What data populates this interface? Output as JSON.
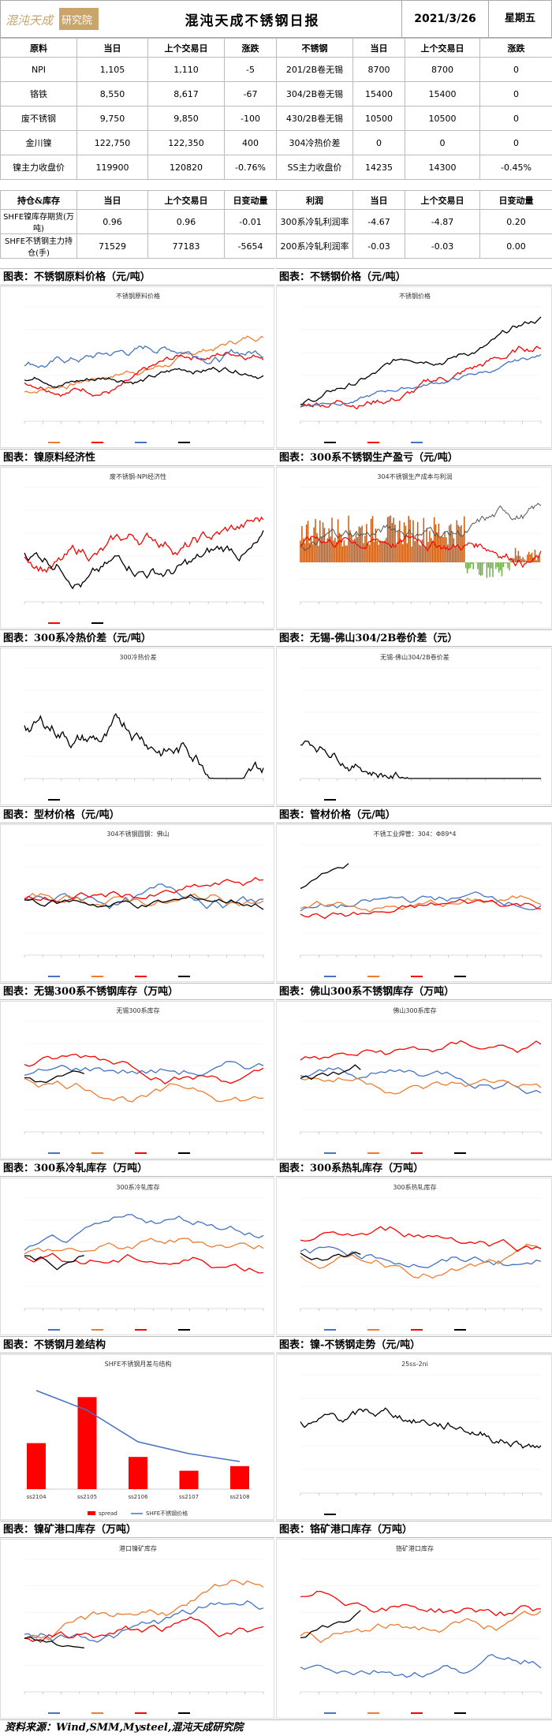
{
  "header": {
    "logo_text": "混沌天成研究院",
    "title": "混沌天成不锈钢日报",
    "date": "2021/3/26",
    "weekday": "星期五"
  },
  "table1": {
    "headers": [
      "原料",
      "当日",
      "上个交易日",
      "涨跌",
      "不锈钢",
      "当日",
      "上个交易日",
      "涨跌"
    ],
    "rows": [
      [
        "NPI",
        "1,105",
        "1,110",
        "-5",
        "201/2B卷无锡",
        "8700",
        "8700",
        "0"
      ],
      [
        "铬铁",
        "8,550",
        "8,617",
        "-67",
        "304/2B卷无锡",
        "15400",
        "15400",
        "0"
      ],
      [
        "废不锈钢",
        "9,750",
        "9,850",
        "-100",
        "430/2B卷无锡",
        "10500",
        "10500",
        "0"
      ],
      [
        "金川镍",
        "122,750",
        "122,350",
        "400",
        "304冷热价差",
        "0",
        "0",
        "0"
      ],
      [
        "镍主力收盘价",
        "119900",
        "120820",
        "-0.76%",
        "SS主力收盘价",
        "14235",
        "14300",
        "-0.45%"
      ]
    ]
  },
  "table2": {
    "headers": [
      "持仓&库存",
      "当日",
      "上个交易日",
      "日变动量",
      "利润",
      "当日",
      "上个交易日",
      "日变动量"
    ],
    "rows": [
      [
        "SHFE镍库存期货(万吨)",
        "0.96",
        "0.96",
        "-0.01",
        "300系冷轧利润率",
        "-4.67",
        "-4.87",
        "0.20"
      ],
      [
        "SHFE不锈钢主力持仓(手)",
        "71529",
        "77183",
        "-5654",
        "200系冷轧利润率",
        "-0.03",
        "-0.03",
        "0.00"
      ]
    ]
  },
  "sections": [
    {
      "left": "图表：不锈钢原料价格（元/吨）",
      "right": "图表：不锈钢价格（元/吨）"
    },
    {
      "left": "图表：镍原料经济性",
      "right": "图表：300系不锈钢生产盈亏（元/吨）"
    },
    {
      "left": "图表：300系冷热价差（元/吨）",
      "right": "图表：无锡-佛山304/2B卷价差（元）"
    },
    {
      "left": "图表：型材价格（元/吨）",
      "right": "图表：管材价格（元/吨）"
    },
    {
      "left": "图表：无锡300系不锈钢库存（万吨）",
      "right": "图表：佛山300系不锈钢库存（万吨）"
    },
    {
      "left": "图表：300系冷轧库存（万吨）",
      "right": "图表：300系热轧库存（万吨）"
    },
    {
      "left": "图表：不锈钢月差结构",
      "right": "图表：镍-不锈钢走势（元/吨）"
    },
    {
      "left": "图表：镍矿港口库存（万吨）",
      "right": "图表：铬矿港口库存（万吨）"
    }
  ],
  "chart_titles": [
    "不锈钢原料价格",
    "不锈钢价格",
    "废不锈钢-NPI经济性",
    "304不锈钢生产成本与利润",
    "300冷热价差",
    "无锡-佛山304/2B卷价差",
    "304不锈钢圆钢：佛山",
    "不锈工业焊管：304：Φ89*4",
    "无锡300系库存",
    "佛山300系库存",
    "300系冷轧库存",
    "300系热轧库存",
    "SHFE不锈钢月差与结构",
    "25ss-2ni",
    "港口镍矿库存",
    "铬矿港口库存"
  ],
  "chart_data": [
    {
      "type": "line",
      "title": "不锈钢月差结构",
      "series": [
        {
          "name": "spread",
          "values": [
            50,
            100,
            35,
            20,
            25
          ]
        },
        {
          "name": "SHFE不锈钢价格",
          "values": [
            14350,
            14300,
            14220,
            14190,
            14170
          ]
        }
      ],
      "categories": [
        "ss2104",
        "ss2105",
        "ss2106",
        "ss2107",
        "ss2108"
      ]
    }
  ],
  "footer": "资料来源：Wind,SMM,Mysteel,混沌天成研究院",
  "colors": {
    "red": "#ff0000",
    "blue": "#4472c4",
    "orange": "#ed7d31",
    "black": "#000000",
    "gray": "#808080",
    "brown": "#c55a11",
    "green": "#70ad47"
  }
}
